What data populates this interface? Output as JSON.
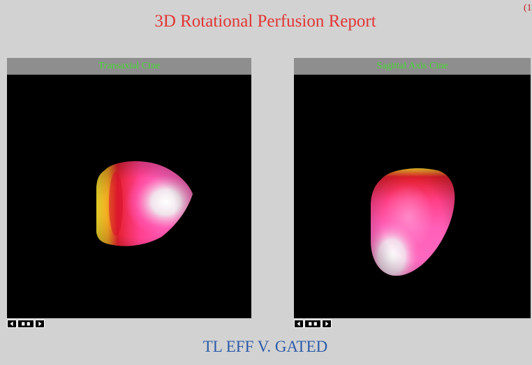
{
  "report": {
    "title": "3D Rotational Perfusion Report",
    "corner_mark": "(1",
    "caption": "TL EFF V. GATED"
  },
  "viewers": {
    "transaxial": {
      "label": "Transaxial Cine"
    },
    "sagittal": {
      "label": "Sagittal Axis Cine"
    }
  },
  "cine_controls": {
    "previous_icon": "step-back-icon",
    "play_icon": "play-pause-icon",
    "next_icon": "step-forward-icon"
  },
  "colors": {
    "title": "#e33434",
    "caption": "#2b5aa8",
    "viewer_label": "#46d832",
    "perfusion_high": "#f0f0f0",
    "perfusion_mid": "#ff4fb0",
    "perfusion_low": "#e8182b",
    "perfusion_min": "#f2d52e"
  }
}
